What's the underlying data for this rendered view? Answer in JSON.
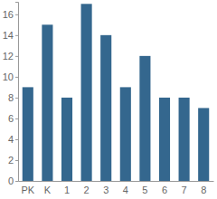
{
  "chart_data": {
    "type": "bar",
    "categories": [
      "PK",
      "K",
      "1",
      "2",
      "3",
      "4",
      "5",
      "6",
      "7",
      "8"
    ],
    "values": [
      9,
      15,
      8,
      17,
      14,
      9,
      12,
      8,
      8,
      7
    ],
    "color": "#34678e",
    "ylim": [
      0,
      17.2
    ],
    "yticks": [
      0,
      2,
      4,
      6,
      8,
      10,
      12,
      14,
      16
    ],
    "grid": false
  }
}
